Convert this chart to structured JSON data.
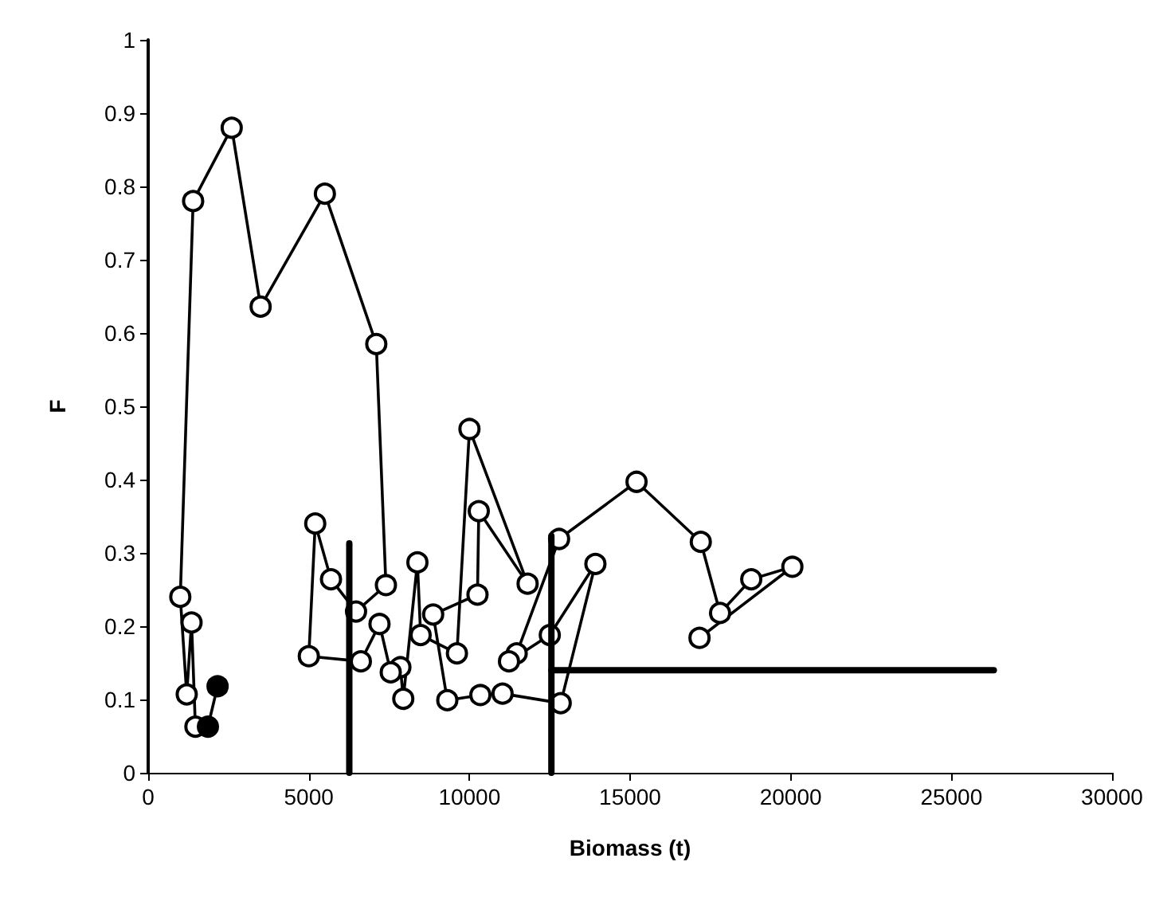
{
  "chart_data": {
    "type": "line",
    "xlabel": "Biomass (t)",
    "ylabel": "F",
    "xlim": [
      0,
      30000
    ],
    "xticks": [
      0,
      5000,
      10000,
      15000,
      20000,
      25000,
      30000
    ],
    "ylim": [
      0,
      1
    ],
    "yticks": [
      0,
      0.1,
      0.2,
      0.3,
      0.4,
      0.5,
      0.6,
      0.7,
      0.8,
      0.9,
      1
    ],
    "grid": false,
    "line_style": "solid",
    "series": [
      {
        "color": "#000000",
        "marker": "circle",
        "x": [
          17160,
          20050,
          18770,
          17800,
          17200,
          15200,
          12790,
          11470,
          11230,
          12500,
          13920,
          12840,
          11030,
          10340,
          9310,
          8870,
          10250,
          10290,
          11810,
          10000,
          9610,
          8480,
          8380,
          7940,
          7850,
          7550,
          7200,
          6620,
          5000,
          5200,
          5690,
          6470,
          7400,
          7100,
          5500,
          3500,
          2600,
          1400,
          1000,
          1200,
          1350,
          1470
        ],
        "values": [
          0.184,
          0.281,
          0.264,
          0.218,
          0.315,
          0.397,
          0.319,
          0.163,
          0.152,
          0.188,
          0.285,
          0.095,
          0.108,
          0.106,
          0.099,
          0.216,
          0.243,
          0.357,
          0.258,
          0.469,
          0.163,
          0.188,
          0.287,
          0.101,
          0.144,
          0.137,
          0.203,
          0.152,
          0.159,
          0.34,
          0.264,
          0.22,
          0.256,
          0.585,
          0.79,
          0.636,
          0.88,
          0.78,
          0.24,
          0.107,
          0.205,
          0.063
        ]
      },
      {
        "color": "#000000",
        "marker": "circle",
        "x": [
          1860,
          2160
        ],
        "values": [
          0.063,
          0.118
        ]
      },
      {
        "color": "#000000",
        "marker": "none",
        "x": [
          6260,
          6260
        ],
        "values": [
          0,
          0.313
        ]
      },
      {
        "color": "#000000",
        "marker": "none",
        "x": [
          12550,
          12550
        ],
        "values": [
          0,
          0.323
        ]
      },
      {
        "color": "#000000",
        "marker": "none",
        "x": [
          12550,
          26320
        ],
        "values": [
          0.14,
          0.14
        ]
      }
    ]
  }
}
